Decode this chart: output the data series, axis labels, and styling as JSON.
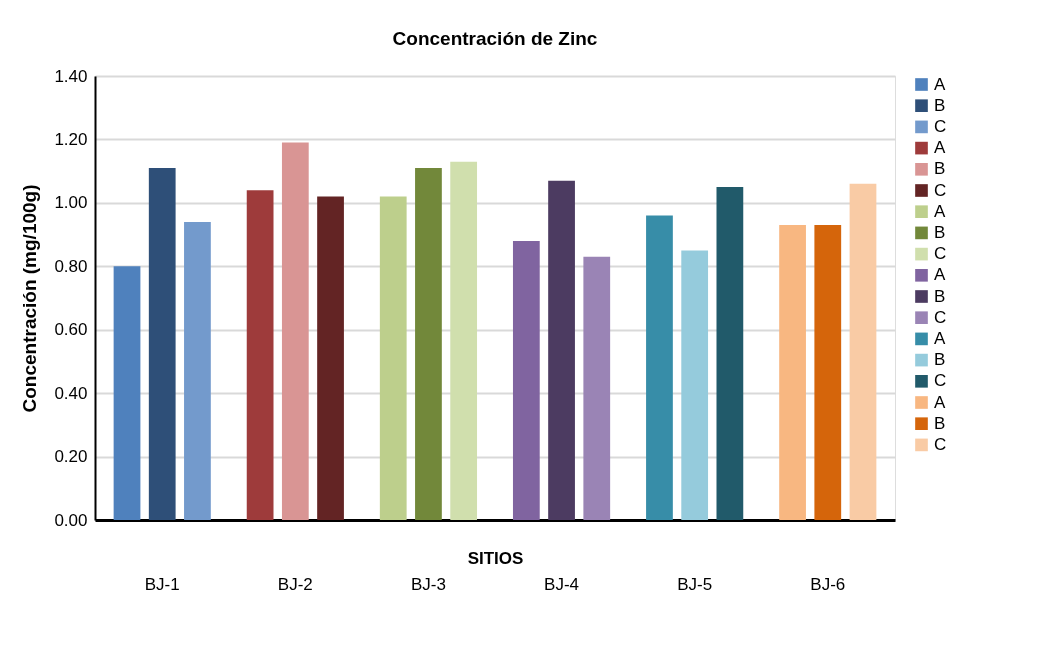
{
  "chart_data": {
    "type": "bar",
    "title": "Concentración de Zinc",
    "xlabel": "SITIOS",
    "ylabel": "Concentración (mg/100g)",
    "categories": [
      "BJ-1",
      "BJ-2",
      "BJ-3",
      "BJ-4",
      "BJ-5",
      "BJ-6"
    ],
    "ylim": [
      0,
      1.4
    ],
    "yticks": [
      {
        "value": 0,
        "label": "0.00"
      },
      {
        "value": 0.2,
        "label": "0.20"
      },
      {
        "value": 0.4,
        "label": "0.40"
      },
      {
        "value": 0.6,
        "label": "0.60"
      },
      {
        "value": 0.8,
        "label": "0.80"
      },
      {
        "value": 1.0,
        "label": "1.00"
      },
      {
        "value": 1.2,
        "label": "1.20"
      },
      {
        "value": 1.4,
        "label": "1.40"
      }
    ],
    "grid": "y",
    "legend": "right",
    "series": [
      {
        "name": "A",
        "color": "#4f81bd",
        "values": [
          0.8,
          null,
          null,
          null,
          null,
          null
        ]
      },
      {
        "name": "B",
        "color": "#2e4f78",
        "values": [
          1.11,
          null,
          null,
          null,
          null,
          null
        ]
      },
      {
        "name": "C",
        "color": "#739acc",
        "values": [
          0.94,
          null,
          null,
          null,
          null,
          null
        ]
      },
      {
        "name": "A",
        "color": "#9e3b3b",
        "values": [
          null,
          1.04,
          null,
          null,
          null,
          null
        ]
      },
      {
        "name": "B",
        "color": "#d99594",
        "values": [
          null,
          1.19,
          null,
          null,
          null,
          null
        ]
      },
      {
        "name": "C",
        "color": "#632424",
        "values": [
          null,
          1.02,
          null,
          null,
          null,
          null
        ]
      },
      {
        "name": "A",
        "color": "#bdcf8c",
        "values": [
          null,
          null,
          1.02,
          null,
          null,
          null
        ]
      },
      {
        "name": "B",
        "color": "#72883a",
        "values": [
          null,
          null,
          1.11,
          null,
          null,
          null
        ]
      },
      {
        "name": "C",
        "color": "#d0dfad",
        "values": [
          null,
          null,
          1.13,
          null,
          null,
          null
        ]
      },
      {
        "name": "A",
        "color": "#8064a0",
        "values": [
          null,
          null,
          null,
          0.88,
          null,
          null
        ]
      },
      {
        "name": "B",
        "color": "#4c3b61",
        "values": [
          null,
          null,
          null,
          1.07,
          null,
          null
        ]
      },
      {
        "name": "C",
        "color": "#9a84b5",
        "values": [
          null,
          null,
          null,
          0.83,
          null,
          null
        ]
      },
      {
        "name": "A",
        "color": "#378da8",
        "values": [
          null,
          null,
          null,
          null,
          0.96,
          null
        ]
      },
      {
        "name": "B",
        "color": "#95cbdc",
        "values": [
          null,
          null,
          null,
          null,
          0.85,
          null
        ]
      },
      {
        "name": "C",
        "color": "#215a6a",
        "values": [
          null,
          null,
          null,
          null,
          1.05,
          null
        ]
      },
      {
        "name": "A",
        "color": "#f8b781",
        "values": [
          null,
          null,
          null,
          null,
          null,
          0.93
        ]
      },
      {
        "name": "B",
        "color": "#d5650b",
        "values": [
          null,
          null,
          null,
          null,
          null,
          0.93
        ]
      },
      {
        "name": "C",
        "color": "#f9cba5",
        "values": [
          null,
          null,
          null,
          null,
          null,
          1.06
        ]
      }
    ]
  }
}
